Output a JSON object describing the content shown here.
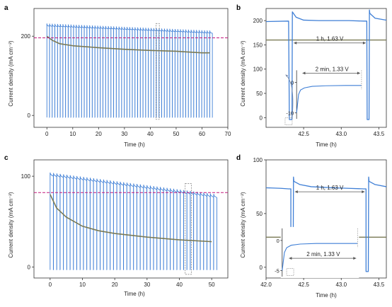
{
  "figure": {
    "panels": [
      {
        "id": "a",
        "letter": "a"
      },
      {
        "id": "b",
        "letter": "b"
      },
      {
        "id": "c",
        "letter": "c"
      },
      {
        "id": "d",
        "letter": "d"
      }
    ]
  },
  "colors": {
    "series_blue": "#3f7fd6",
    "series_olive": "#7a7a55",
    "reference_line": "#c2187b",
    "axis": "#333333",
    "inset_box": "#7a8ba8"
  },
  "chart_data": [
    {
      "panel": "a",
      "type": "line",
      "xlabel": "Time (h)",
      "ylabel": "Current density (mA cm⁻²)",
      "xlim": [
        -5,
        70
      ],
      "ylim": [
        -30,
        270
      ],
      "xticks": [
        0,
        10,
        20,
        30,
        40,
        50,
        60,
        70
      ],
      "xtick_labels": [
        "0",
        "10",
        "20",
        "30",
        "40",
        "50",
        "60",
        "70"
      ],
      "yticks": [
        0,
        200
      ],
      "ytick_labels": [
        "0",
        "200"
      ],
      "reference_line": {
        "y": 196,
        "style": "dashed"
      },
      "series": [
        {
          "color_key": "series_blue",
          "kind": "pulsed",
          "t_start": 0,
          "t_end": 64,
          "period_h": 1.033,
          "high_start": 225,
          "high_end": 207,
          "spike": 232,
          "low": -5,
          "description": "cycling 1 h at 1.63 V / 2 min at 1.33 V"
        },
        {
          "color_key": "series_olive",
          "kind": "decay",
          "x": [
            0,
            2,
            5,
            10,
            20,
            30,
            40,
            50,
            60,
            63
          ],
          "y": [
            200,
            190,
            181,
            176,
            171,
            167,
            164,
            162,
            158,
            158
          ]
        }
      ],
      "highlight_box": {
        "x": [
          42.2,
          43.5
        ],
        "y": [
          -10,
          232
        ]
      }
    },
    {
      "panel": "b",
      "type": "line",
      "xlabel": "Time (h)",
      "ylabel": "Current density (mA cm⁻²)",
      "xlim": [
        42.0,
        43.6
      ],
      "ylim": [
        -20,
        225
      ],
      "xticks": [
        42.5,
        43.0,
        43.5
      ],
      "xtick_labels": [
        "42.5",
        "43.0",
        "43.5"
      ],
      "yticks": [
        0,
        50,
        100,
        150,
        200
      ],
      "ytick_labels": [
        "0",
        "50",
        "100",
        "150",
        "200"
      ],
      "annotations": {
        "long_hold": "1 h, 1.63 V",
        "short_hold": "2 min, 1.33 V"
      },
      "series": [
        {
          "color_key": "series_blue",
          "description": "current density, 1 h hold at 1.63 V between two 2-min holds at 1.33 V",
          "x": [
            42.0,
            42.3,
            42.31,
            42.34,
            42.345,
            42.35,
            42.4,
            42.5,
            42.7,
            42.9,
            43.1,
            43.3,
            43.34,
            43.345,
            43.37,
            43.375,
            43.38,
            43.45,
            43.6
          ],
          "y": [
            198,
            199,
            -4,
            -4,
            -3,
            218,
            207,
            201,
            200,
            200,
            200,
            199,
            199,
            -4,
            -4,
            222,
            215,
            205,
            201
          ]
        },
        {
          "color_key": "series_olive",
          "x": [
            42.0,
            43.6
          ],
          "y": [
            160,
            160
          ]
        }
      ],
      "inset": {
        "xrange_h": [
          0,
          0.0333
        ],
        "ylim": [
          -12,
          4
        ],
        "yticks": [
          -10,
          0
        ],
        "ytick_labels": [
          "-10",
          "0"
        ],
        "x": [
          0,
          0.001,
          0.002,
          0.004,
          0.008,
          0.015,
          0.025,
          0.0333
        ],
        "y": [
          -10,
          -4,
          -2.5,
          -1.8,
          -1.3,
          -1.1,
          -1.0,
          -1.0
        ]
      }
    },
    {
      "panel": "c",
      "type": "line",
      "xlabel": "Time (h)",
      "ylabel": "Current density (mA cm⁻²)",
      "xlim": [
        -5,
        55
      ],
      "ylim": [
        -12,
        118
      ],
      "xticks": [
        0,
        10,
        20,
        30,
        40,
        50
      ],
      "xtick_labels": [
        "0",
        "10",
        "20",
        "30",
        "40",
        "50"
      ],
      "yticks": [
        0,
        100
      ],
      "ytick_labels": [
        "0",
        "100"
      ],
      "reference_line": {
        "y": 82,
        "style": "dashed"
      },
      "series": [
        {
          "color_key": "series_blue",
          "kind": "pulsed",
          "t_start": 0,
          "t_end": 51.5,
          "period_h": 1.033,
          "high_start": 100,
          "high_end": 76,
          "spike": 104,
          "low": -3,
          "description": "cycling 1 h at 1.63 V / 2 min at 1.33 V"
        },
        {
          "color_key": "series_olive",
          "kind": "decay",
          "x": [
            0,
            2,
            5,
            10,
            15,
            20,
            30,
            40,
            50
          ],
          "y": [
            80,
            65,
            55,
            45,
            40,
            37,
            33,
            30,
            28
          ]
        }
      ],
      "highlight_box": {
        "x": [
          41.8,
          43.7
        ],
        "y": [
          -8,
          92
        ]
      }
    },
    {
      "panel": "d",
      "type": "line",
      "xlabel": "Time (h)",
      "ylabel": "Current density (mA cm⁻²)",
      "xlim": [
        42.0,
        43.6
      ],
      "ylim": [
        -10,
        100
      ],
      "xticks": [
        42.0,
        42.5,
        43.0,
        43.5
      ],
      "xtick_labels": [
        "42.0",
        "42.5",
        "43.0",
        "43.5"
      ],
      "yticks": [
        0,
        50,
        100
      ],
      "ytick_labels": [
        "0",
        "50",
        "100"
      ],
      "annotations": {
        "long_hold": "1 h, 1.63 V",
        "short_hold": "2 min, 1.33 V"
      },
      "series": [
        {
          "color_key": "series_blue",
          "description": "current density, 1 h hold at 1.63 V between two 2-min holds at 1.33 V",
          "x": [
            42.0,
            42.2,
            42.3,
            42.33,
            42.33,
            42.36,
            42.36,
            42.365,
            42.37,
            42.45,
            42.6,
            42.9,
            43.1,
            43.3,
            43.33,
            43.33,
            43.36,
            43.36,
            43.365,
            43.37,
            43.45,
            43.6
          ],
          "y": [
            74,
            73.5,
            73,
            73,
            -4,
            -4,
            -2,
            84,
            80,
            77,
            75,
            74,
            73.5,
            73,
            73,
            -4,
            -4,
            -2,
            84,
            80,
            77,
            75
          ]
        },
        {
          "color_key": "series_olive",
          "x": [
            42.0,
            43.6
          ],
          "y": [
            28,
            28
          ]
        }
      ],
      "inset": {
        "xrange_h": [
          0,
          0.0333
        ],
        "ylim": [
          -6,
          2
        ],
        "yticks": [
          -5,
          0
        ],
        "ytick_labels": [
          "-5",
          "0"
        ],
        "x": [
          0,
          0.001,
          0.002,
          0.004,
          0.008,
          0.015,
          0.025,
          0.0333
        ],
        "y": [
          -5,
          -2,
          -1.2,
          -0.8,
          -0.6,
          -0.5,
          -0.5,
          -0.5
        ]
      }
    }
  ]
}
